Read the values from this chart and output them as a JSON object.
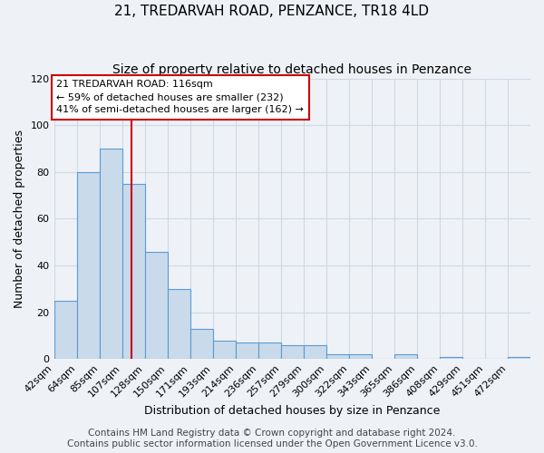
{
  "title": "21, TREDARVAH ROAD, PENZANCE, TR18 4LD",
  "subtitle": "Size of property relative to detached houses in Penzance",
  "xlabel": "Distribution of detached houses by size in Penzance",
  "ylabel": "Number of detached properties",
  "bin_labels": [
    "42sqm",
    "64sqm",
    "85sqm",
    "107sqm",
    "128sqm",
    "150sqm",
    "171sqm",
    "193sqm",
    "214sqm",
    "236sqm",
    "257sqm",
    "279sqm",
    "300sqm",
    "322sqm",
    "343sqm",
    "365sqm",
    "386sqm",
    "408sqm",
    "429sqm",
    "451sqm",
    "472sqm"
  ],
  "bar_heights": [
    25,
    80,
    90,
    75,
    46,
    30,
    13,
    8,
    7,
    7,
    6,
    6,
    2,
    2,
    0,
    2,
    0,
    1,
    0,
    0,
    1
  ],
  "bar_color": "#c9daea",
  "bar_edge_color": "#5b9bd5",
  "ylim": [
    0,
    120
  ],
  "yticks": [
    0,
    20,
    40,
    60,
    80,
    100,
    120
  ],
  "property_line_sqm": 116,
  "bin_edges_sqm": [
    42,
    64,
    85,
    107,
    128,
    150,
    171,
    193,
    214,
    236,
    257,
    279,
    300,
    322,
    343,
    365,
    386,
    408,
    429,
    451,
    472,
    493
  ],
  "annotation_line1": "21 TREDARVAH ROAD: 116sqm",
  "annotation_line2": "← 59% of detached houses are smaller (232)",
  "annotation_line3": "41% of semi-detached houses are larger (162) →",
  "annotation_box_color": "#ffffff",
  "annotation_box_edge_color": "#cc0000",
  "footer_line1": "Contains HM Land Registry data © Crown copyright and database right 2024.",
  "footer_line2": "Contains public sector information licensed under the Open Government Licence v3.0.",
  "background_color": "#eef2f7",
  "plot_bg_color": "#eef2f7",
  "grid_color": "#d0d8e4",
  "title_fontsize": 11,
  "subtitle_fontsize": 10,
  "axis_label_fontsize": 9,
  "tick_fontsize": 8,
  "annotation_fontsize": 8,
  "footer_fontsize": 7.5
}
